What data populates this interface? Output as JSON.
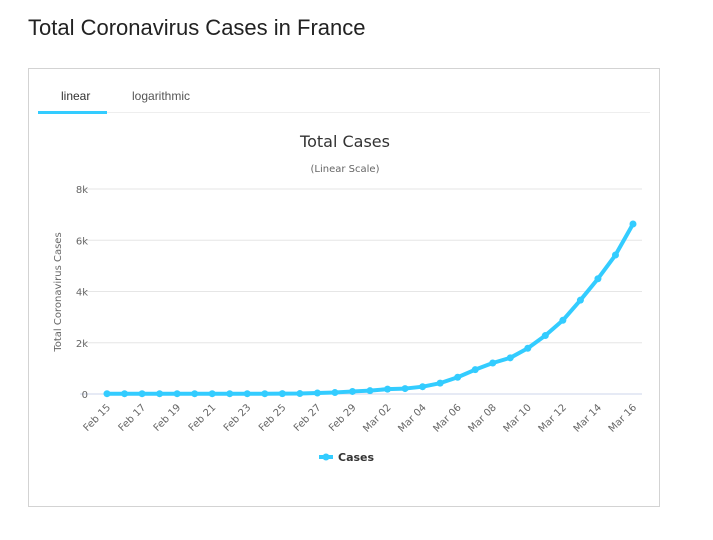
{
  "page_title": "Total Coronavirus Cases in France",
  "tabs": [
    {
      "label": "linear",
      "active": true
    },
    {
      "label": "logarithmic",
      "active": false
    }
  ],
  "colors": {
    "series": "#33ccff",
    "accent": "#33ccff"
  },
  "chart_data": {
    "type": "line",
    "title": "Total Cases",
    "subtitle": "(Linear Scale)",
    "ylabel": "Total Coronavirus Cases",
    "xlabel": "",
    "ylim": [
      0,
      8000
    ],
    "yticks": [
      0,
      2000,
      4000,
      6000,
      8000
    ],
    "ytick_labels": [
      "0",
      "2k",
      "4k",
      "6k",
      "8k"
    ],
    "grid": true,
    "legend": "bottom-center",
    "x": [
      "Feb 15",
      "Feb 16",
      "Feb 17",
      "Feb 18",
      "Feb 19",
      "Feb 20",
      "Feb 21",
      "Feb 22",
      "Feb 23",
      "Feb 24",
      "Feb 25",
      "Feb 26",
      "Feb 27",
      "Feb 28",
      "Feb 29",
      "Mar 01",
      "Mar 02",
      "Mar 03",
      "Mar 04",
      "Mar 05",
      "Mar 06",
      "Mar 07",
      "Mar 08",
      "Mar 09",
      "Mar 10",
      "Mar 11",
      "Mar 12",
      "Mar 13",
      "Mar 14",
      "Mar 15",
      "Mar 16"
    ],
    "xtick_labels": [
      "Feb 15",
      "Feb 17",
      "Feb 19",
      "Feb 21",
      "Feb 23",
      "Feb 25",
      "Feb 27",
      "Feb 29",
      "Mar 02",
      "Mar 04",
      "Mar 06",
      "Mar 08",
      "Mar 10",
      "Mar 12",
      "Mar 14",
      "Mar 16"
    ],
    "series": [
      {
        "name": "Cases",
        "values": [
          12,
          12,
          12,
          12,
          12,
          12,
          12,
          12,
          12,
          12,
          14,
          18,
          38,
          57,
          100,
          130,
          191,
          212,
          285,
          423,
          653,
          949,
          1209,
          1412,
          1784,
          2281,
          2876,
          3661,
          4499,
          5423,
          6633
        ]
      }
    ]
  }
}
